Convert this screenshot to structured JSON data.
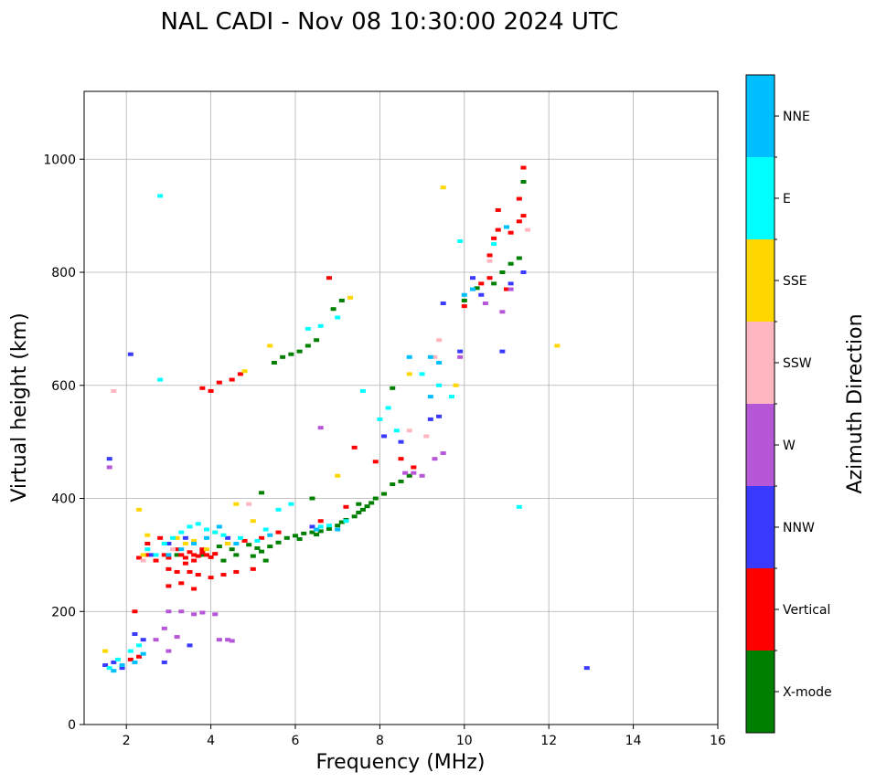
{
  "chart_data": {
    "type": "scatter",
    "title": "NAL CADI - Nov 08 10:30:00 2024 UTC",
    "xlabel": "Frequency (MHz)",
    "ylabel": "Virtual height (km)",
    "xlim": [
      1,
      16
    ],
    "ylim": [
      0,
      1120
    ],
    "xticks": [
      2,
      4,
      6,
      8,
      10,
      12,
      14,
      16
    ],
    "yticks": [
      0,
      200,
      400,
      600,
      800,
      1000
    ],
    "grid": true,
    "colorbar": {
      "label": "Azimuth Direction",
      "categories": [
        {
          "name": "X-mode",
          "color": "#008000"
        },
        {
          "name": "Vertical",
          "color": "#ff0000"
        },
        {
          "name": "NNW",
          "color": "#3a3aff"
        },
        {
          "name": "W",
          "color": "#b557d6"
        },
        {
          "name": "SSW",
          "color": "#ffb6c1"
        },
        {
          "name": "SSE",
          "color": "#ffd700"
        },
        {
          "name": "E",
          "color": "#00ffff"
        },
        {
          "name": "NNE",
          "color": "#00bfff"
        }
      ]
    },
    "series": [
      {
        "name": "X-mode",
        "points": [
          [
            4.9,
            318
          ],
          [
            5.1,
            312
          ],
          [
            5.2,
            306
          ],
          [
            5.4,
            315
          ],
          [
            5.6,
            322
          ],
          [
            5.8,
            330
          ],
          [
            6.0,
            334
          ],
          [
            6.2,
            338
          ],
          [
            6.4,
            340
          ],
          [
            6.6,
            342
          ],
          [
            6.8,
            346
          ],
          [
            7.0,
            352
          ],
          [
            7.2,
            362
          ],
          [
            7.4,
            368
          ],
          [
            7.5,
            375
          ],
          [
            7.6,
            380
          ],
          [
            7.8,
            392
          ],
          [
            7.9,
            400
          ],
          [
            8.1,
            408
          ],
          [
            8.3,
            425
          ],
          [
            8.5,
            430
          ],
          [
            8.7,
            440
          ],
          [
            5.0,
            298
          ],
          [
            5.3,
            290
          ],
          [
            6.1,
            328
          ],
          [
            6.5,
            336
          ],
          [
            7.1,
            358
          ],
          [
            7.7,
            386
          ],
          [
            4.2,
            315
          ],
          [
            4.5,
            310
          ],
          [
            4.6,
            300
          ],
          [
            5.5,
            640
          ],
          [
            5.7,
            650
          ],
          [
            5.9,
            655
          ],
          [
            6.1,
            660
          ],
          [
            6.3,
            670
          ],
          [
            6.5,
            680
          ],
          [
            6.9,
            735
          ],
          [
            7.1,
            750
          ],
          [
            3.2,
            300
          ],
          [
            3.8,
            300
          ],
          [
            4.3,
            290
          ],
          [
            10.0,
            750
          ],
          [
            10.3,
            772
          ],
          [
            10.7,
            780
          ],
          [
            10.9,
            800
          ],
          [
            11.1,
            815
          ],
          [
            11.3,
            825
          ],
          [
            11.4,
            960
          ],
          [
            8.3,
            595
          ],
          [
            5.2,
            410
          ],
          [
            6.4,
            400
          ],
          [
            7.5,
            390
          ]
        ]
      },
      {
        "name": "Vertical",
        "points": [
          [
            2.3,
            295
          ],
          [
            2.5,
            300
          ],
          [
            2.7,
            290
          ],
          [
            2.9,
            300
          ],
          [
            3.0,
            295
          ],
          [
            3.2,
            310
          ],
          [
            3.3,
            300
          ],
          [
            3.4,
            295
          ],
          [
            3.5,
            305
          ],
          [
            3.6,
            300
          ],
          [
            3.7,
            298
          ],
          [
            3.8,
            304
          ],
          [
            3.9,
            300
          ],
          [
            4.0,
            296
          ],
          [
            4.1,
            302
          ],
          [
            3.6,
            290
          ],
          [
            3.8,
            310
          ],
          [
            3.4,
            285
          ],
          [
            3.0,
            275
          ],
          [
            3.2,
            270
          ],
          [
            3.5,
            270
          ],
          [
            3.7,
            265
          ],
          [
            4.0,
            260
          ],
          [
            4.3,
            265
          ],
          [
            4.6,
            270
          ],
          [
            5.0,
            275
          ],
          [
            3.3,
            250
          ],
          [
            3.6,
            240
          ],
          [
            3.0,
            245
          ],
          [
            2.2,
            200
          ],
          [
            2.1,
            115
          ],
          [
            2.3,
            120
          ],
          [
            2.5,
            320
          ],
          [
            2.8,
            330
          ],
          [
            4.4,
            320
          ],
          [
            4.8,
            325
          ],
          [
            5.2,
            330
          ],
          [
            5.6,
            340
          ],
          [
            3.8,
            595
          ],
          [
            4.0,
            590
          ],
          [
            4.2,
            605
          ],
          [
            4.5,
            610
          ],
          [
            4.7,
            620
          ],
          [
            6.8,
            790
          ],
          [
            7.4,
            490
          ],
          [
            7.9,
            465
          ],
          [
            8.5,
            470
          ],
          [
            8.8,
            455
          ],
          [
            10.0,
            740
          ],
          [
            10.4,
            780
          ],
          [
            10.6,
            830
          ],
          [
            10.7,
            860
          ],
          [
            10.8,
            875
          ],
          [
            11.0,
            880
          ],
          [
            11.1,
            870
          ],
          [
            11.3,
            890
          ],
          [
            11.4,
            900
          ],
          [
            11.4,
            985
          ],
          [
            10.8,
            910
          ],
          [
            11.3,
            930
          ],
          [
            11.0,
            770
          ],
          [
            10.6,
            790
          ],
          [
            6.6,
            360
          ],
          [
            7.2,
            385
          ]
        ]
      },
      {
        "name": "NNW",
        "points": [
          [
            1.5,
            105
          ],
          [
            1.7,
            110
          ],
          [
            1.9,
            100
          ],
          [
            2.2,
            160
          ],
          [
            2.4,
            150
          ],
          [
            2.9,
            110
          ],
          [
            3.5,
            140
          ],
          [
            2.6,
            300
          ],
          [
            3.0,
            320
          ],
          [
            3.4,
            330
          ],
          [
            4.4,
            330
          ],
          [
            6.4,
            350
          ],
          [
            8.1,
            510
          ],
          [
            8.5,
            500
          ],
          [
            9.2,
            540
          ],
          [
            9.4,
            545
          ],
          [
            9.9,
            660
          ],
          [
            10.2,
            790
          ],
          [
            10.4,
            760
          ],
          [
            11.1,
            780
          ],
          [
            11.4,
            800
          ],
          [
            10.9,
            660
          ],
          [
            12.9,
            100
          ],
          [
            1.6,
            470
          ],
          [
            2.1,
            655
          ],
          [
            9.5,
            745
          ]
        ]
      },
      {
        "name": "W",
        "points": [
          [
            4.2,
            150
          ],
          [
            4.4,
            150
          ],
          [
            4.5,
            148
          ],
          [
            3.0,
            200
          ],
          [
            3.3,
            200
          ],
          [
            3.6,
            195
          ],
          [
            3.8,
            198
          ],
          [
            4.1,
            195
          ],
          [
            2.9,
            170
          ],
          [
            3.2,
            155
          ],
          [
            2.7,
            150
          ],
          [
            3.0,
            130
          ],
          [
            8.6,
            445
          ],
          [
            8.8,
            445
          ],
          [
            9.0,
            440
          ],
          [
            9.3,
            470
          ],
          [
            9.5,
            480
          ],
          [
            6.6,
            525
          ],
          [
            1.6,
            455
          ],
          [
            10.9,
            730
          ],
          [
            11.1,
            770
          ],
          [
            9.9,
            650
          ],
          [
            10.5,
            745
          ]
        ]
      },
      {
        "name": "SSW",
        "points": [
          [
            8.7,
            520
          ],
          [
            9.1,
            510
          ],
          [
            9.4,
            680
          ],
          [
            9.3,
            650
          ],
          [
            2.4,
            290
          ],
          [
            3.1,
            310
          ],
          [
            4.9,
            390
          ],
          [
            1.7,
            590
          ],
          [
            10.6,
            820
          ],
          [
            11.5,
            875
          ]
        ]
      },
      {
        "name": "SSE",
        "points": [
          [
            1.5,
            130
          ],
          [
            2.3,
            380
          ],
          [
            2.5,
            335
          ],
          [
            3.2,
            330
          ],
          [
            3.4,
            320
          ],
          [
            3.6,
            325
          ],
          [
            3.9,
            310
          ],
          [
            4.1,
            340
          ],
          [
            4.4,
            320
          ],
          [
            4.6,
            390
          ],
          [
            4.8,
            625
          ],
          [
            5.4,
            670
          ],
          [
            7.0,
            440
          ],
          [
            7.3,
            755
          ],
          [
            8.7,
            620
          ],
          [
            9.8,
            600
          ],
          [
            9.5,
            950
          ],
          [
            12.2,
            670
          ],
          [
            2.4,
            300
          ],
          [
            5.0,
            360
          ]
        ]
      },
      {
        "name": "E",
        "points": [
          [
            1.6,
            100
          ],
          [
            1.8,
            115
          ],
          [
            2.1,
            130
          ],
          [
            2.3,
            140
          ],
          [
            2.5,
            310
          ],
          [
            2.7,
            300
          ],
          [
            2.9,
            320
          ],
          [
            3.1,
            330
          ],
          [
            3.3,
            340
          ],
          [
            3.5,
            350
          ],
          [
            3.7,
            355
          ],
          [
            3.9,
            345
          ],
          [
            4.1,
            340
          ],
          [
            4.3,
            335
          ],
          [
            4.7,
            330
          ],
          [
            5.1,
            325
          ],
          [
            5.3,
            345
          ],
          [
            5.6,
            380
          ],
          [
            6.6,
            350
          ],
          [
            6.8,
            352
          ],
          [
            7.2,
            360
          ],
          [
            6.3,
            700
          ],
          [
            6.6,
            705
          ],
          [
            7.0,
            720
          ],
          [
            2.8,
            935
          ],
          [
            2.8,
            610
          ],
          [
            7.6,
            590
          ],
          [
            8.0,
            540
          ],
          [
            8.2,
            560
          ],
          [
            9.0,
            620
          ],
          [
            9.4,
            600
          ],
          [
            9.7,
            580
          ],
          [
            9.9,
            855
          ],
          [
            10.7,
            850
          ],
          [
            11.3,
            385
          ],
          [
            8.4,
            520
          ],
          [
            5.9,
            390
          ]
        ]
      },
      {
        "name": "NNE",
        "points": [
          [
            1.7,
            95
          ],
          [
            1.9,
            105
          ],
          [
            2.2,
            110
          ],
          [
            2.4,
            125
          ],
          [
            3.0,
            300
          ],
          [
            3.3,
            310
          ],
          [
            3.6,
            320
          ],
          [
            3.9,
            330
          ],
          [
            4.2,
            350
          ],
          [
            4.6,
            320
          ],
          [
            5.4,
            335
          ],
          [
            6.5,
            345
          ],
          [
            7.0,
            345
          ],
          [
            8.7,
            650
          ],
          [
            9.2,
            650
          ],
          [
            9.4,
            640
          ],
          [
            9.2,
            580
          ],
          [
            10.2,
            770
          ],
          [
            10.0,
            760
          ],
          [
            11.0,
            880
          ]
        ]
      }
    ]
  }
}
